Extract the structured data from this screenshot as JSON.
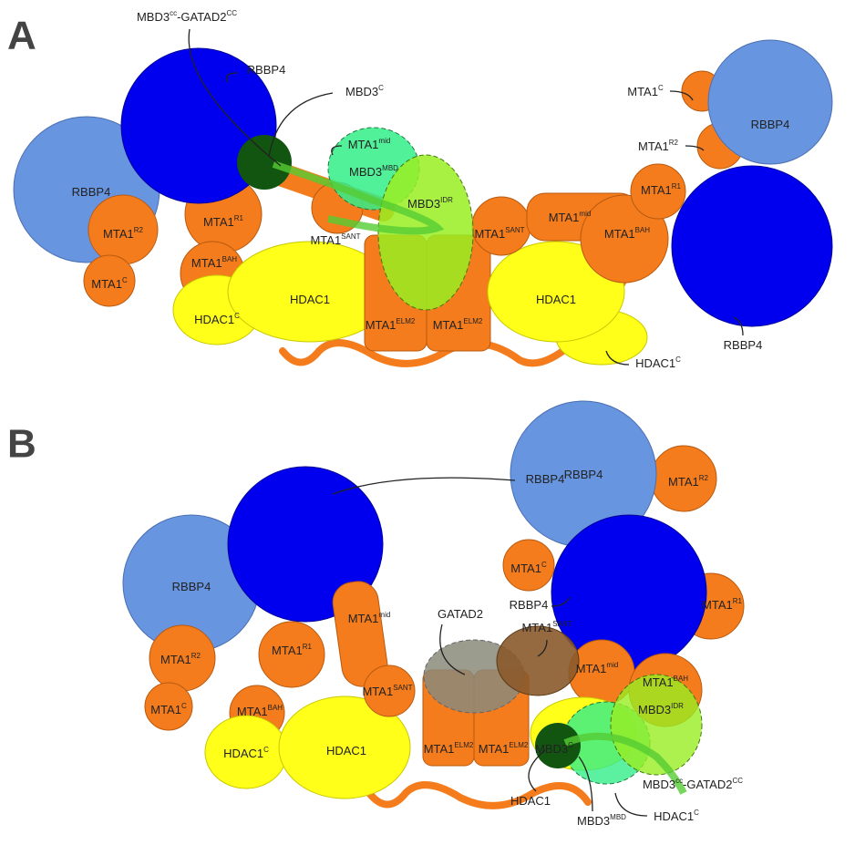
{
  "panels": [
    {
      "letter": "A",
      "labels": [
        {
          "base": "MBD3",
          "sup": "cc",
          "base2": "-GATAD2",
          "sup2": "CC"
        },
        {
          "base": "RBBP4"
        },
        {
          "base": "RBBP4"
        },
        {
          "base": "MBD3",
          "sup": "C"
        },
        {
          "base": "MTA1",
          "sup": "mid"
        },
        {
          "base": "MBD3",
          "sup": "MBD"
        },
        {
          "base": "MBD3",
          "sup": "IDR"
        },
        {
          "base": "MTA1",
          "sup": "R2"
        },
        {
          "base": "MTA1",
          "sup": "R1"
        },
        {
          "base": "MTA1",
          "sup": "SANT"
        },
        {
          "base": "MTA1",
          "sup": "SANT"
        },
        {
          "base": "MTA1",
          "sup": "mid"
        },
        {
          "base": "MTA1",
          "sup": "BAH"
        },
        {
          "base": "MTA1",
          "sup": "R1"
        },
        {
          "base": "MTA1",
          "sup": "BAH"
        },
        {
          "base": "HDAC1"
        },
        {
          "base": "HDAC1"
        },
        {
          "base": "HDAC1",
          "sup": "C"
        },
        {
          "base": "MTA1",
          "sup": "C"
        },
        {
          "base": "MTA1",
          "sup": "ELM2"
        },
        {
          "base": "MTA1",
          "sup": "ELM2"
        },
        {
          "base": "MTA1",
          "sup": "C"
        },
        {
          "base": "MTA1",
          "sup": "R2"
        },
        {
          "base": "RBBP4"
        },
        {
          "base": "RBBP4"
        },
        {
          "base": "HDAC1",
          "sup": "C"
        }
      ]
    },
    {
      "letter": "B",
      "labels": [
        {
          "base": "RBBP4"
        },
        {
          "base": "RBBP4"
        },
        {
          "base": "MTA1",
          "sup": "R2"
        },
        {
          "base": "RBBP4"
        },
        {
          "base": "MTA1",
          "sup": "C"
        },
        {
          "base": "RBBP4"
        },
        {
          "base": "MTA1",
          "sup": "R1"
        },
        {
          "base": "GATAD2"
        },
        {
          "base": "MTA1",
          "sup": "SANT"
        },
        {
          "base": "MTA1",
          "sup": "mid"
        },
        {
          "base": "MTA1",
          "sup": "R2"
        },
        {
          "base": "MTA1",
          "sup": "R1"
        },
        {
          "base": "MTA1",
          "sup": "mid"
        },
        {
          "base": "MTA1",
          "sup": "BAH"
        },
        {
          "base": "MTA1",
          "sup": "SANT"
        },
        {
          "base": "MTA1",
          "sup": "C"
        },
        {
          "base": "MTA1",
          "sup": "BAH"
        },
        {
          "base": "MBD3",
          "sup": "IDR"
        },
        {
          "base": "HDAC1"
        },
        {
          "base": "HDAC1",
          "sup": "C"
        },
        {
          "base": "MTA1",
          "sup": "ELM2"
        },
        {
          "base": "MTA1",
          "sup": "ELM2"
        },
        {
          "base": "MBD3",
          "sup": "C"
        },
        {
          "base": "MBD3",
          "sup": "cc",
          "base2": "-GATAD2",
          "sup2": "CC"
        },
        {
          "base": "HDAC1"
        },
        {
          "base": "MBD3",
          "sup": "MBD"
        },
        {
          "base": "HDAC1",
          "sup": "C"
        }
      ]
    }
  ]
}
